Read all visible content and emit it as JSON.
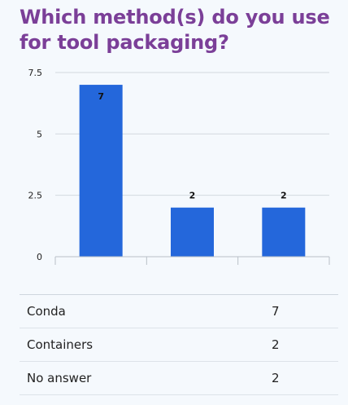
{
  "title": "Which method(s) do you use for tool packaging?",
  "colors": {
    "bar": "#2467db",
    "title": "#7b3f98",
    "grid": "#d4d9df",
    "background": "#f5f9fd"
  },
  "chart_data": {
    "type": "bar",
    "title": "Which method(s) do you use for tool packaging?",
    "categories": [
      "Conda",
      "Containers",
      "No answer"
    ],
    "values": [
      7,
      2,
      2
    ],
    "data_labels": [
      "7",
      "2",
      "2"
    ],
    "xlabel": "",
    "ylabel": "",
    "ylim": [
      0,
      7.5
    ],
    "yticks": [
      0,
      2.5,
      5,
      7.5
    ],
    "ytick_labels": [
      "0",
      "2.5",
      "5",
      "7.5"
    ],
    "grid": true,
    "legend": "none"
  },
  "table": {
    "rows": [
      {
        "label": "Conda",
        "value": "7"
      },
      {
        "label": "Containers",
        "value": "2"
      },
      {
        "label": "No answer",
        "value": "2"
      }
    ]
  }
}
